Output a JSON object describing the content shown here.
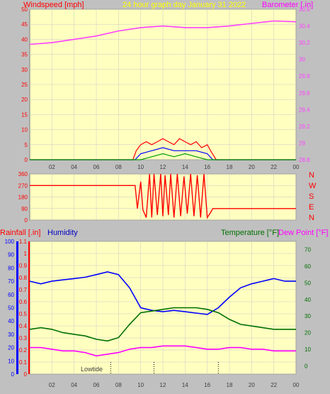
{
  "header": {
    "windspeed_label": "Windspeed [mph]",
    "title": "24 hour graph day   January 31 2022",
    "barometer_label": "Barometer [.in]"
  },
  "colors": {
    "background": "#c0c0c0",
    "plot_bg": "#ffffc0",
    "grid": "#c8c8c8",
    "windspeed": "#ff0000",
    "gust": "#ff2020",
    "wind_blue": "#0000ff",
    "wind_green": "#00a000",
    "barometer": "#ff40ff",
    "direction": "#ff0000",
    "rain_axis": "#ff0000",
    "humidity": "#0000ff",
    "temperature": "#007000",
    "dewpoint": "#ff00ff",
    "title": "#ffff00"
  },
  "chart_data": [
    {
      "type": "line",
      "name": "wind-barometer",
      "x_ticks": [
        "02",
        "04",
        "06",
        "08",
        "10",
        "12",
        "14",
        "16",
        "18",
        "20",
        "22",
        "00"
      ],
      "left_axis": {
        "label": "Windspeed [mph]",
        "ticks": [
          0,
          5,
          10,
          15,
          20,
          25,
          30,
          35,
          40,
          45,
          50
        ],
        "ylim": [
          0,
          50
        ]
      },
      "right_axis": {
        "label": "Barometer [.in]",
        "ticks": [
          "28.8",
          "29",
          "29.2",
          "29.4",
          "29.6",
          "29.8",
          "30",
          "30.2",
          "30.4",
          "30.6"
        ],
        "ylim": [
          28.8,
          30.6
        ]
      },
      "series": [
        {
          "axis": "right",
          "values": [
            [
              0,
              30.18
            ],
            [
              2,
              30.2
            ],
            [
              4,
              30.24
            ],
            [
              6,
              30.28
            ],
            [
              8,
              30.34
            ],
            [
              10,
              30.38
            ],
            [
              12,
              30.4
            ],
            [
              14,
              30.38
            ],
            [
              16,
              30.38
            ],
            [
              18,
              30.4
            ],
            [
              20,
              30.43
            ],
            [
              22,
              30.46
            ],
            [
              24,
              30.45
            ]
          ]
        },
        {
          "axis": "left",
          "values": [
            [
              0,
              0
            ],
            [
              9.3,
              0
            ],
            [
              9.6,
              3
            ],
            [
              10,
              5
            ],
            [
              10.5,
              6
            ],
            [
              11,
              5
            ],
            [
              11.5,
              6
            ],
            [
              12,
              7
            ],
            [
              12.5,
              6
            ],
            [
              13,
              5
            ],
            [
              13.5,
              7
            ],
            [
              14,
              6
            ],
            [
              14.5,
              5
            ],
            [
              15,
              6
            ],
            [
              15.5,
              4
            ],
            [
              16,
              5
            ],
            [
              16.3,
              3
            ],
            [
              16.8,
              0
            ],
            [
              24,
              0
            ]
          ]
        },
        {
          "axis": "left",
          "values": [
            [
              0,
              0
            ],
            [
              9.5,
              0
            ],
            [
              10,
              2
            ],
            [
              11,
              3
            ],
            [
              12,
              4
            ],
            [
              13,
              3
            ],
            [
              14,
              3
            ],
            [
              15,
              3
            ],
            [
              16,
              2
            ],
            [
              16.5,
              0
            ],
            [
              24,
              0
            ]
          ]
        },
        {
          "axis": "left",
          "values": [
            [
              0,
              0
            ],
            [
              10,
              0
            ],
            [
              11,
              1
            ],
            [
              12,
              2
            ],
            [
              13,
              1
            ],
            [
              14,
              2
            ],
            [
              15,
              1
            ],
            [
              16,
              0
            ],
            [
              24,
              0
            ]
          ]
        }
      ]
    },
    {
      "type": "line",
      "name": "wind-direction",
      "x_ticks": [
        "02",
        "04",
        "06",
        "08",
        "10",
        "12",
        "14",
        "16",
        "18",
        "20",
        "22",
        "00"
      ],
      "left_axis": {
        "ticks": [
          0,
          90,
          180,
          270,
          360
        ],
        "ylim": [
          0,
          360
        ]
      },
      "right_labels": [
        "N",
        "W",
        "S",
        "E",
        "N"
      ],
      "series": [
        {
          "values": [
            [
              0,
              270
            ],
            [
              9.5,
              270
            ],
            [
              9.7,
              90
            ],
            [
              10,
              300
            ],
            [
              10.2,
              80
            ],
            [
              10.5,
              20
            ],
            [
              10.8,
              360
            ],
            [
              11,
              20
            ],
            [
              11.2,
              360
            ],
            [
              11.5,
              40
            ],
            [
              11.8,
              360
            ],
            [
              12,
              30
            ],
            [
              12.2,
              350
            ],
            [
              12.5,
              40
            ],
            [
              12.7,
              360
            ],
            [
              13,
              20
            ],
            [
              13.3,
              360
            ],
            [
              13.6,
              30
            ],
            [
              13.9,
              340
            ],
            [
              14.2,
              50
            ],
            [
              14.5,
              360
            ],
            [
              14.8,
              30
            ],
            [
              15.1,
              350
            ],
            [
              15.4,
              20
            ],
            [
              15.7,
              360
            ],
            [
              16,
              20
            ],
            [
              16.3,
              60
            ],
            [
              16.5,
              90
            ],
            [
              24,
              90
            ]
          ]
        }
      ]
    },
    {
      "type": "line",
      "name": "rain-humidity-temperature",
      "x_ticks": [
        "02",
        "04",
        "06",
        "08",
        "10",
        "12",
        "14",
        "16",
        "18",
        "20",
        "22",
        "00"
      ],
      "axis_labels": {
        "rain": "Rainfall [.in]",
        "humidity": "Humidity",
        "temperature": "Temperature [°F]",
        "dewpoint": "Dew Point [°F]"
      },
      "humidity_axis": {
        "ticks": [
          0,
          10,
          20,
          30,
          40,
          50,
          60,
          70,
          80,
          90,
          100
        ],
        "ylim": [
          0,
          100
        ]
      },
      "rain_axis": {
        "ticks": [
          "0",
          "0.1",
          "0.2",
          "0.3",
          "0.4",
          "0.5",
          "0.6",
          "0.7",
          "0.8",
          "0.9",
          "1",
          "1.1"
        ],
        "ylim": [
          0,
          1.1
        ]
      },
      "temp_axis": {
        "ticks": [
          0,
          10,
          20,
          30,
          40,
          50,
          60,
          70
        ],
        "ylim": [
          -5,
          75
        ]
      },
      "annotation": "Lowtide",
      "series": [
        {
          "key": "humidity",
          "values": [
            [
              0,
              70
            ],
            [
              1,
              68
            ],
            [
              2,
              70
            ],
            [
              3,
              71
            ],
            [
              4,
              72
            ],
            [
              5,
              73
            ],
            [
              6,
              75
            ],
            [
              7,
              77
            ],
            [
              8,
              75
            ],
            [
              9,
              65
            ],
            [
              10,
              50
            ],
            [
              11,
              48
            ],
            [
              12,
              47
            ],
            [
              13,
              48
            ],
            [
              14,
              47
            ],
            [
              15,
              46
            ],
            [
              16,
              45
            ],
            [
              17,
              50
            ],
            [
              18,
              58
            ],
            [
              19,
              65
            ],
            [
              20,
              68
            ],
            [
              21,
              70
            ],
            [
              22,
              72
            ],
            [
              23,
              70
            ],
            [
              24,
              70
            ]
          ]
        },
        {
          "key": "temperature",
          "values": [
            [
              0,
              22
            ],
            [
              1,
              23
            ],
            [
              2,
              22
            ],
            [
              3,
              20
            ],
            [
              4,
              19
            ],
            [
              5,
              18
            ],
            [
              6,
              16
            ],
            [
              7,
              15
            ],
            [
              8,
              17
            ],
            [
              9,
              25
            ],
            [
              10,
              32
            ],
            [
              11,
              33
            ],
            [
              12,
              34
            ],
            [
              13,
              35
            ],
            [
              14,
              35
            ],
            [
              15,
              35
            ],
            [
              16,
              34
            ],
            [
              17,
              32
            ],
            [
              18,
              28
            ],
            [
              19,
              25
            ],
            [
              20,
              24
            ],
            [
              21,
              23
            ],
            [
              22,
              22
            ],
            [
              23,
              22
            ],
            [
              24,
              22
            ]
          ]
        },
        {
          "key": "dewpoint",
          "values": [
            [
              0,
              11
            ],
            [
              1,
              11
            ],
            [
              2,
              10
            ],
            [
              3,
              9
            ],
            [
              4,
              9
            ],
            [
              5,
              8
            ],
            [
              6,
              6
            ],
            [
              7,
              7
            ],
            [
              8,
              8
            ],
            [
              9,
              10
            ],
            [
              10,
              11
            ],
            [
              11,
              11
            ],
            [
              12,
              12
            ],
            [
              13,
              12
            ],
            [
              14,
              12
            ],
            [
              15,
              11
            ],
            [
              16,
              10
            ],
            [
              17,
              10
            ],
            [
              18,
              11
            ],
            [
              19,
              11
            ],
            [
              20,
              10
            ],
            [
              21,
              10
            ],
            [
              22,
              9
            ],
            [
              23,
              9
            ],
            [
              24,
              9
            ]
          ]
        }
      ]
    }
  ]
}
